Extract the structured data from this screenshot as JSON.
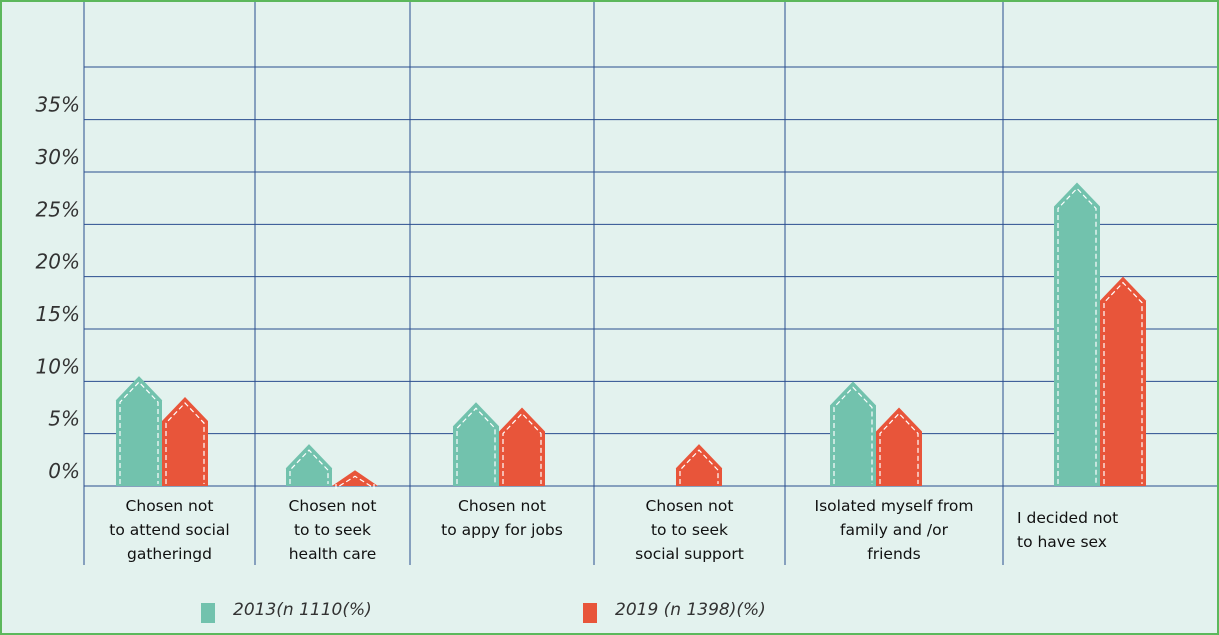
{
  "chart_data": {
    "type": "bar",
    "categories": [
      "Chosen not\nto attend social\ngatheringd",
      "Chosen not\nto to seek\nhealth care",
      "Chosen not\nto appy for jobs",
      "Chosen not\nto to seek\nsocial support",
      "Isolated myself from\nfamily and /or\nfriends",
      "I decided not\nto have sex"
    ],
    "series": [
      {
        "name": "2013(n 1110(%)",
        "color": "#72c2ad",
        "values": [
          10.5,
          4,
          8,
          0,
          10,
          29
        ]
      },
      {
        "name": "2019 (n 1398)(%)",
        "color": "#e8553a",
        "values": [
          8.5,
          1.5,
          7.5,
          4,
          7.5,
          20
        ]
      }
    ],
    "ylim": [
      0,
      45
    ],
    "yticks": [
      {
        "value": 0,
        "label": "0%"
      },
      {
        "value": 5,
        "label": "5%"
      },
      {
        "value": 10,
        "label": "10%"
      },
      {
        "value": 15,
        "label": "15%"
      },
      {
        "value": 20,
        "label": "20%"
      },
      {
        "value": 25,
        "label": "25%"
      },
      {
        "value": 30,
        "label": "30%"
      },
      {
        "value": 35,
        "label": "35%"
      }
    ],
    "grid": true
  }
}
